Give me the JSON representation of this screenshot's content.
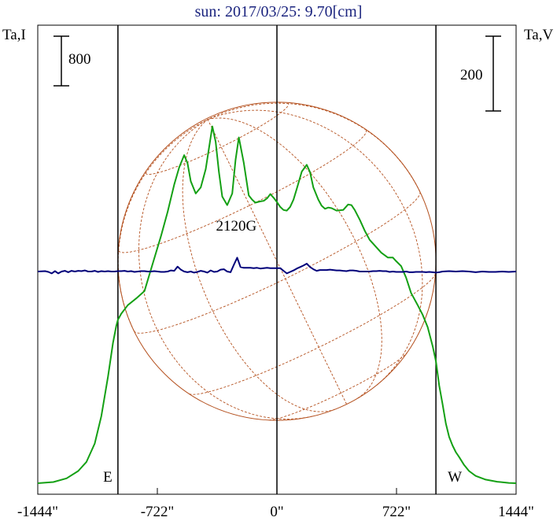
{
  "title": "sun: 2017/03/25: 9.70[cm]",
  "colors": {
    "intensity": "#14a014",
    "polarization": "#00007a",
    "disk": "#b4501e",
    "title": "#1a237e",
    "limb_lines": "#000000"
  },
  "chart_data": {
    "type": "line",
    "title": "sun: 2017/03/25: 9.70[cm]",
    "xlabel": "",
    "left_axis_label": "Ta,I",
    "right_axis_label": "Ta,V",
    "x_unit": "arcsec",
    "xlim": [
      -1444,
      1444
    ],
    "x_ticks": [
      -1444,
      -722,
      0,
      722,
      1444
    ],
    "x_tick_labels": [
      "-1444\"",
      "-722\"",
      "0\"",
      "722\"",
      "1444\""
    ],
    "left_scale_bar": {
      "label": "800",
      "value": 800
    },
    "right_scale_bar": {
      "label": "200",
      "value": 200
    },
    "limbs": [
      {
        "label": "E",
        "x": -960
      },
      {
        "label": "W",
        "x": 960
      }
    ],
    "annotation": {
      "text": "2120G",
      "x": -245
    },
    "grid": false,
    "series": [
      {
        "key": "I",
        "axis": "left",
        "x": [
          -1444,
          -1350,
          -1270,
          -1200,
          -1150,
          -1100,
          -1060,
          -1020,
          -990,
          -970,
          -960,
          -940,
          -900,
          -850,
          -800,
          -750,
          -700,
          -660,
          -620,
          -590,
          -560,
          -540,
          -520,
          -490,
          -460,
          -430,
          -410,
          -390,
          -370,
          -350,
          -330,
          -300,
          -270,
          -250,
          -230,
          -200,
          -170,
          -150,
          -130,
          -100,
          -80,
          -60,
          -40,
          -20,
          0,
          20,
          40,
          60,
          80,
          100,
          120,
          150,
          180,
          200,
          220,
          250,
          270,
          290,
          310,
          330,
          360,
          400,
          430,
          450,
          470,
          500,
          530,
          560,
          600,
          630,
          670,
          700,
          720,
          750,
          780,
          810,
          850,
          880,
          910,
          940,
          960,
          980,
          1000,
          1020,
          1040,
          1060,
          1080,
          1100,
          1130,
          1160,
          1200,
          1260,
          1330,
          1400,
          1444
        ],
        "values": [
          0,
          20,
          80,
          200,
          350,
          650,
          1100,
          1750,
          2300,
          2580,
          2680,
          2780,
          2920,
          3030,
          3150,
          3600,
          4050,
          4450,
          4900,
          5180,
          5380,
          5250,
          4950,
          4750,
          4850,
          5150,
          5500,
          5850,
          5600,
          5100,
          4700,
          4560,
          4750,
          5300,
          5670,
          5250,
          4720,
          4650,
          4600,
          4620,
          4630,
          4670,
          4740,
          4680,
          4610,
          4530,
          4480,
          4470,
          4530,
          4650,
          4830,
          5110,
          5220,
          5100,
          4850,
          4650,
          4550,
          4500,
          4520,
          4510,
          4470,
          4480,
          4570,
          4560,
          4480,
          4320,
          4140,
          3990,
          3870,
          3780,
          3700,
          3700,
          3640,
          3560,
          3370,
          3120,
          2920,
          2760,
          2560,
          2250,
          2000,
          1600,
          1300,
          980,
          760,
          620,
          510,
          430,
          300,
          200,
          120,
          60,
          25,
          5,
          0
        ]
      },
      {
        "key": "V",
        "axis": "right",
        "x": [
          -1444,
          -1400,
          -1380,
          -1360,
          -1340,
          -1320,
          -1300,
          -1280,
          -1260,
          -1240,
          -1220,
          -1200,
          -1180,
          -1160,
          -1140,
          -1120,
          -1100,
          -1080,
          -1060,
          -1040,
          -1020,
          -1000,
          -980,
          -960,
          -940,
          -920,
          -900,
          -880,
          -860,
          -840,
          -820,
          -800,
          -780,
          -760,
          -740,
          -720,
          -700,
          -680,
          -660,
          -640,
          -620,
          -600,
          -580,
          -560,
          -540,
          -520,
          -500,
          -480,
          -460,
          -440,
          -420,
          -400,
          -380,
          -360,
          -340,
          -320,
          -300,
          -280,
          -260,
          -240,
          -220,
          -200,
          -180,
          -160,
          -140,
          -120,
          -100,
          -80,
          -60,
          -40,
          -20,
          0,
          20,
          40,
          60,
          80,
          100,
          120,
          140,
          160,
          180,
          200,
          220,
          240,
          260,
          280,
          300,
          320,
          340,
          360,
          380,
          400,
          420,
          440,
          460,
          480,
          500,
          520,
          540,
          560,
          580,
          600,
          620,
          640,
          660,
          680,
          700,
          720,
          740,
          760,
          780,
          800,
          820,
          840,
          860,
          880,
          900,
          920,
          940,
          960,
          980,
          1000,
          1040,
          1080,
          1120,
          1160,
          1200,
          1240,
          1280,
          1320,
          1360,
          1400,
          1444
        ],
        "values": [
          0,
          1,
          -1,
          -5,
          1,
          -5,
          0,
          2,
          -2,
          2,
          0,
          2,
          1,
          3,
          0,
          0,
          2,
          -1,
          1,
          0,
          1,
          0,
          0,
          1,
          1,
          2,
          0,
          1,
          -1,
          0,
          1,
          1,
          0,
          0,
          1,
          0,
          -1,
          -1,
          0,
          3,
          2,
          13,
          5,
          0,
          -2,
          0,
          -3,
          -1,
          2,
          0,
          -3,
          3,
          -1,
          0,
          5,
          6,
          0,
          -2,
          18,
          37,
          12,
          10,
          10,
          10,
          9,
          10,
          8,
          9,
          10,
          9,
          9,
          9,
          9,
          2,
          -5,
          -1,
          3,
          8,
          12,
          16,
          21,
          12,
          6,
          2,
          4,
          4,
          4,
          5,
          4,
          3,
          3,
          2,
          1,
          3,
          3,
          2,
          0,
          0,
          0,
          0,
          1,
          1,
          2,
          1,
          1,
          -1,
          0,
          -1,
          -1,
          -1,
          0,
          -2,
          -2,
          -1,
          -1,
          -1,
          -2,
          -1,
          -2,
          -3,
          -2,
          0,
          1,
          0,
          1,
          0,
          -2,
          0,
          -1,
          -1,
          0,
          -1,
          0
        ]
      }
    ]
  }
}
